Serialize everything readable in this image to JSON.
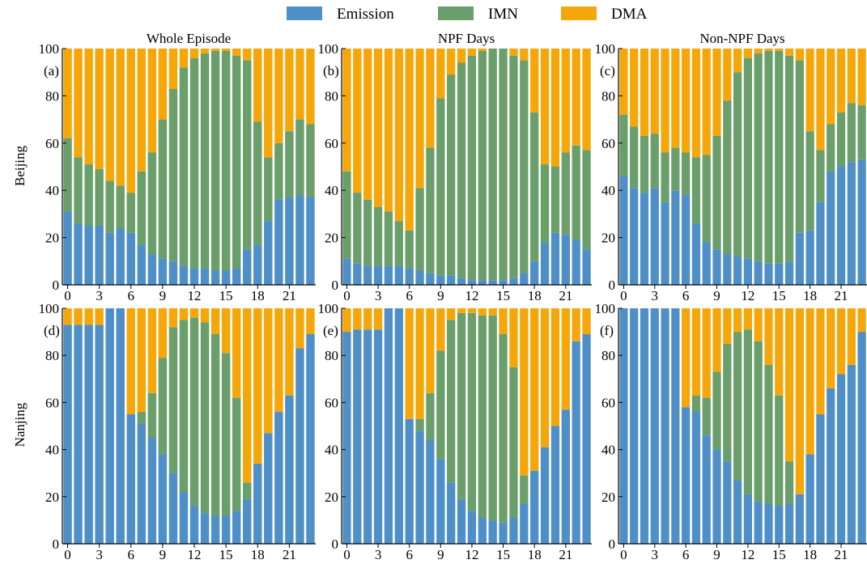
{
  "figure": {
    "legend": [
      {
        "label": "Emission",
        "color": "#4F8FC7"
      },
      {
        "label": "IMN",
        "color": "#6A9E6A"
      },
      {
        "label": "DMA",
        "color": "#F5A70A"
      }
    ],
    "column_titles": [
      "Whole Episode",
      "NPF Days",
      "Non-NPF Days"
    ],
    "row_labels": [
      "Beijing",
      "Nanjing"
    ],
    "x_ticks": [
      "0",
      "3",
      "6",
      "9",
      "12",
      "15",
      "18",
      "21"
    ],
    "y_ticks": [
      "0",
      "20",
      "40",
      "60",
      "80",
      "100"
    ]
  },
  "chart_data": [
    {
      "type": "bar",
      "stacked": true,
      "panel": "(a)",
      "row": "Beijing",
      "title": "Whole Episode",
      "x": [
        0,
        1,
        2,
        3,
        4,
        5,
        6,
        7,
        8,
        9,
        10,
        11,
        12,
        13,
        14,
        15,
        16,
        17,
        18,
        19,
        20,
        21,
        22,
        23
      ],
      "ylim": [
        0,
        100
      ],
      "xlim": [
        -0.5,
        23.5
      ],
      "series": [
        {
          "name": "Emission",
          "values": [
            31,
            26,
            25,
            25,
            22,
            24,
            22,
            17,
            13,
            11,
            10,
            8,
            7,
            7,
            6,
            6,
            7,
            15,
            17,
            27,
            36,
            37,
            38,
            37
          ]
        },
        {
          "name": "IMN",
          "values": [
            31,
            28,
            26,
            24,
            22,
            18,
            17,
            31,
            43,
            59,
            73,
            84,
            89,
            91,
            93,
            93,
            90,
            80,
            52,
            27,
            24,
            28,
            32,
            31
          ]
        },
        {
          "name": "DMA",
          "values": [
            38,
            46,
            49,
            51,
            56,
            58,
            61,
            52,
            44,
            30,
            17,
            8,
            4,
            2,
            1,
            1,
            3,
            5,
            31,
            46,
            40,
            35,
            30,
            32
          ]
        }
      ]
    },
    {
      "type": "bar",
      "stacked": true,
      "panel": "(b)",
      "row": "Beijing",
      "title": "NPF Days",
      "x": [
        0,
        1,
        2,
        3,
        4,
        5,
        6,
        7,
        8,
        9,
        10,
        11,
        12,
        13,
        14,
        15,
        16,
        17,
        18,
        19,
        20,
        21,
        22,
        23
      ],
      "ylim": [
        0,
        100
      ],
      "xlim": [
        -0.5,
        23.5
      ],
      "series": [
        {
          "name": "Emission",
          "values": [
            11,
            9,
            8,
            8,
            8,
            8,
            7,
            6,
            5,
            4,
            4,
            3,
            2,
            2,
            2,
            2,
            3,
            5,
            10,
            18,
            22,
            21,
            19,
            15
          ]
        },
        {
          "name": "IMN",
          "values": [
            37,
            30,
            28,
            25,
            23,
            19,
            16,
            35,
            53,
            75,
            85,
            91,
            95,
            97,
            98,
            98,
            94,
            90,
            63,
            33,
            28,
            35,
            40,
            42
          ]
        },
        {
          "name": "DMA",
          "values": [
            52,
            61,
            64,
            67,
            69,
            73,
            77,
            59,
            42,
            21,
            11,
            6,
            3,
            1,
            0,
            0,
            3,
            5,
            27,
            49,
            50,
            44,
            41,
            43
          ]
        }
      ]
    },
    {
      "type": "bar",
      "stacked": true,
      "panel": "(c)",
      "row": "Beijing",
      "title": "Non-NPF Days",
      "x": [
        0,
        1,
        2,
        3,
        4,
        5,
        6,
        7,
        8,
        9,
        10,
        11,
        12,
        13,
        14,
        15,
        16,
        17,
        18,
        19,
        20,
        21,
        22,
        23
      ],
      "ylim": [
        0,
        100
      ],
      "xlim": [
        -0.5,
        23.5
      ],
      "series": [
        {
          "name": "Emission",
          "values": [
            46,
            41,
            39,
            41,
            35,
            40,
            38,
            26,
            18,
            15,
            13,
            12,
            11,
            10,
            9,
            9,
            10,
            22,
            23,
            35,
            48,
            50,
            52,
            53
          ]
        },
        {
          "name": "IMN",
          "values": [
            26,
            26,
            24,
            23,
            21,
            18,
            18,
            28,
            37,
            48,
            65,
            78,
            85,
            88,
            90,
            90,
            87,
            73,
            42,
            22,
            20,
            23,
            25,
            23
          ]
        },
        {
          "name": "DMA",
          "values": [
            28,
            33,
            37,
            36,
            44,
            42,
            44,
            46,
            45,
            37,
            22,
            10,
            4,
            2,
            1,
            1,
            3,
            5,
            35,
            43,
            32,
            27,
            23,
            24
          ]
        }
      ]
    },
    {
      "type": "bar",
      "stacked": true,
      "panel": "(d)",
      "row": "Nanjing",
      "title": "Whole Episode",
      "x": [
        0,
        1,
        2,
        3,
        4,
        5,
        6,
        7,
        8,
        9,
        10,
        11,
        12,
        13,
        14,
        15,
        16,
        17,
        18,
        19,
        20,
        21,
        22,
        23
      ],
      "ylim": [
        0,
        100
      ],
      "xlim": [
        -0.5,
        23.5
      ],
      "series": [
        {
          "name": "Emission",
          "values": [
            93,
            93,
            93,
            93,
            100,
            100,
            55,
            51,
            45,
            38,
            30,
            22,
            16,
            13,
            12,
            12,
            14,
            19,
            34,
            47,
            56,
            63,
            83,
            89
          ]
        },
        {
          "name": "IMN",
          "values": [
            0,
            0,
            0,
            0,
            0,
            0,
            0,
            5,
            19,
            41,
            62,
            73,
            80,
            81,
            77,
            69,
            48,
            7,
            0,
            0,
            0,
            0,
            0,
            0
          ]
        },
        {
          "name": "DMA",
          "values": [
            7,
            7,
            7,
            7,
            0,
            0,
            45,
            44,
            36,
            21,
            8,
            5,
            4,
            6,
            11,
            19,
            38,
            74,
            66,
            53,
            44,
            37,
            17,
            11
          ]
        }
      ]
    },
    {
      "type": "bar",
      "stacked": true,
      "panel": "(e)",
      "row": "Nanjing",
      "title": "NPF Days",
      "x": [
        0,
        1,
        2,
        3,
        4,
        5,
        6,
        7,
        8,
        9,
        10,
        11,
        12,
        13,
        14,
        15,
        16,
        17,
        18,
        19,
        20,
        21,
        22,
        23
      ],
      "ylim": [
        0,
        100
      ],
      "xlim": [
        -0.5,
        23.5
      ],
      "series": [
        {
          "name": "Emission",
          "values": [
            90,
            91,
            91,
            91,
            100,
            100,
            53,
            48,
            44,
            36,
            26,
            19,
            14,
            11,
            10,
            9,
            11,
            17,
            31,
            41,
            50,
            57,
            86,
            89
          ]
        },
        {
          "name": "IMN",
          "values": [
            0,
            0,
            0,
            0,
            0,
            0,
            0,
            5,
            20,
            46,
            69,
            79,
            84,
            86,
            87,
            80,
            64,
            12,
            0,
            0,
            0,
            0,
            0,
            0
          ]
        },
        {
          "name": "DMA",
          "values": [
            10,
            9,
            9,
            9,
            0,
            0,
            47,
            47,
            36,
            18,
            5,
            2,
            2,
            3,
            3,
            11,
            25,
            71,
            69,
            59,
            50,
            43,
            14,
            11
          ]
        }
      ]
    },
    {
      "type": "bar",
      "stacked": true,
      "panel": "(f)",
      "row": "Nanjing",
      "title": "Non-NPF Days",
      "x": [
        0,
        1,
        2,
        3,
        4,
        5,
        6,
        7,
        8,
        9,
        10,
        11,
        12,
        13,
        14,
        15,
        16,
        17,
        18,
        19,
        20,
        21,
        22,
        23
      ],
      "ylim": [
        0,
        100
      ],
      "xlim": [
        -0.5,
        23.5
      ],
      "series": [
        {
          "name": "Emission",
          "values": [
            100,
            100,
            100,
            100,
            100,
            100,
            58,
            56,
            46,
            40,
            35,
            27,
            21,
            18,
            17,
            16,
            17,
            21,
            38,
            55,
            66,
            72,
            76,
            90
          ]
        },
        {
          "name": "IMN",
          "values": [
            0,
            0,
            0,
            0,
            0,
            0,
            0,
            7,
            16,
            33,
            50,
            63,
            70,
            68,
            59,
            47,
            18,
            0,
            0,
            0,
            0,
            0,
            0,
            0
          ]
        },
        {
          "name": "DMA",
          "values": [
            0,
            0,
            0,
            0,
            0,
            0,
            42,
            37,
            38,
            27,
            15,
            10,
            9,
            14,
            24,
            37,
            65,
            79,
            62,
            45,
            34,
            28,
            24,
            10
          ]
        }
      ]
    }
  ]
}
